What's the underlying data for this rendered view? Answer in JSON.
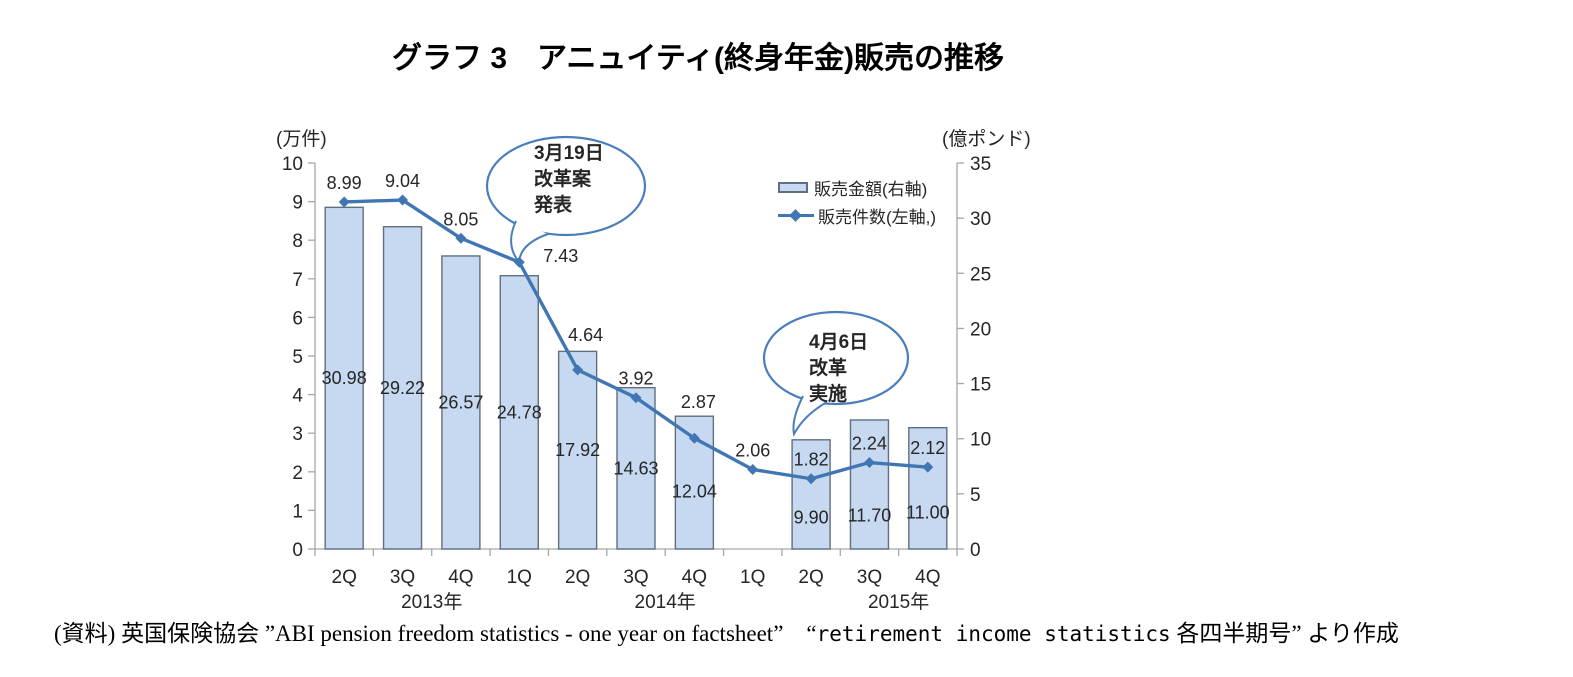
{
  "title": "グラフ 3　アニュイティ(終身年金)販売の推移",
  "legend": {
    "items": [
      {
        "label": "販売金額(右軸)",
        "swatch": "bar"
      },
      {
        "label": "販売件数(左軸,)",
        "swatch": "line-diamond"
      }
    ]
  },
  "source": {
    "part1": "(資料) 英国保険協会 ”ABI pension freedom statistics - one year on factsheet”　“",
    "mono": "retirement income statistics",
    "part2": " 各四半期号” より作成"
  },
  "chart_data": {
    "type": "bar+line combo, dual axis",
    "title": "グラフ 3　アニュイティ(終身年金)販売の推移",
    "categories": [
      "2Q",
      "3Q",
      "4Q",
      "1Q",
      "2Q",
      "3Q",
      "4Q",
      "1Q",
      "2Q",
      "3Q",
      "4Q"
    ],
    "year_groups": [
      {
        "label": "2013年",
        "from": 0,
        "to": 2
      },
      {
        "label": "2014年",
        "from": 3,
        "to": 6
      },
      {
        "label": "2015年",
        "from": 7,
        "to": 10
      }
    ],
    "series": [
      {
        "name": "販売金額(右軸)",
        "type": "bar",
        "axis": "right",
        "unit": "億ポンド",
        "values": [
          30.98,
          29.22,
          26.57,
          24.78,
          17.92,
          14.63,
          12.04,
          null,
          9.9,
          11.7,
          11.0
        ]
      },
      {
        "name": "販売件数(左軸,)",
        "type": "line",
        "axis": "left",
        "unit": "万件",
        "values": [
          8.99,
          9.04,
          8.05,
          7.43,
          4.64,
          3.92,
          2.87,
          2.06,
          1.82,
          2.24,
          2.12
        ]
      }
    ],
    "left_axis": {
      "unit_label": "(万件)",
      "min": 0,
      "max": 10,
      "step": 1
    },
    "right_axis": {
      "unit_label": "(億ポンド)",
      "min": 0,
      "max": 35,
      "step": 5
    },
    "annotations": [
      {
        "text": "3月19日\n改革案\n発表",
        "points_to": "1Q 2014"
      },
      {
        "text": "4月6日\n改革\n実施",
        "points_to": "2Q 2015"
      }
    ],
    "grid": false,
    "legend_position": "inside top-right",
    "colors": {
      "bar_fill": "#c6d9f0",
      "bar_border": "#5f6f80",
      "line": "#4176b4",
      "bubble_stroke": "#4a7ebb",
      "axis": "#a6a6a6",
      "text": "#262626"
    }
  }
}
